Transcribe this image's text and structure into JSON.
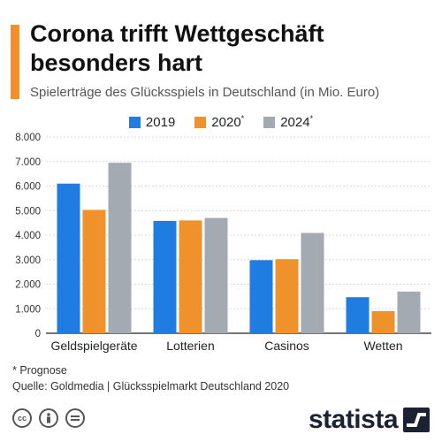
{
  "title": "Corona trifft Wettgeschäft besonders hart",
  "subtitle": "Spielerträge des Glücksspiels in Deutschland (in Mio. Euro)",
  "footnote": "* Prognose",
  "source": "Quelle: Goldmedia | Glücksspielmarkt Deutschland 2020",
  "brand": "statista",
  "colors": {
    "accent": "#f28e2b",
    "series_2019": "#1f7ce0",
    "series_2020": "#f0922b",
    "series_2024": "#a3aab2"
  },
  "icons": [
    "creative-commons-icon",
    "attribution-icon",
    "no-derivatives-icon"
  ],
  "chart_data": {
    "type": "bar",
    "categories": [
      "Geldspielgeräte",
      "Lotterien",
      "Casinos",
      "Wetten"
    ],
    "series": [
      {
        "name": "2019",
        "marker": "",
        "values": [
          6100,
          4580,
          2980,
          1470
        ]
      },
      {
        "name": "2020",
        "marker": "*",
        "values": [
          5030,
          4600,
          3020,
          900
        ]
      },
      {
        "name": "2024",
        "marker": "*",
        "values": [
          6950,
          4700,
          4090,
          1700
        ]
      }
    ],
    "ylim": [
      0,
      8000
    ],
    "yticks": [
      "0",
      "1.000",
      "2.000",
      "3.000",
      "4.000",
      "5.000",
      "6.000",
      "7.000",
      "8.000"
    ],
    "grid": true,
    "legend_position": "top-center",
    "xlabel": "",
    "ylabel": ""
  }
}
